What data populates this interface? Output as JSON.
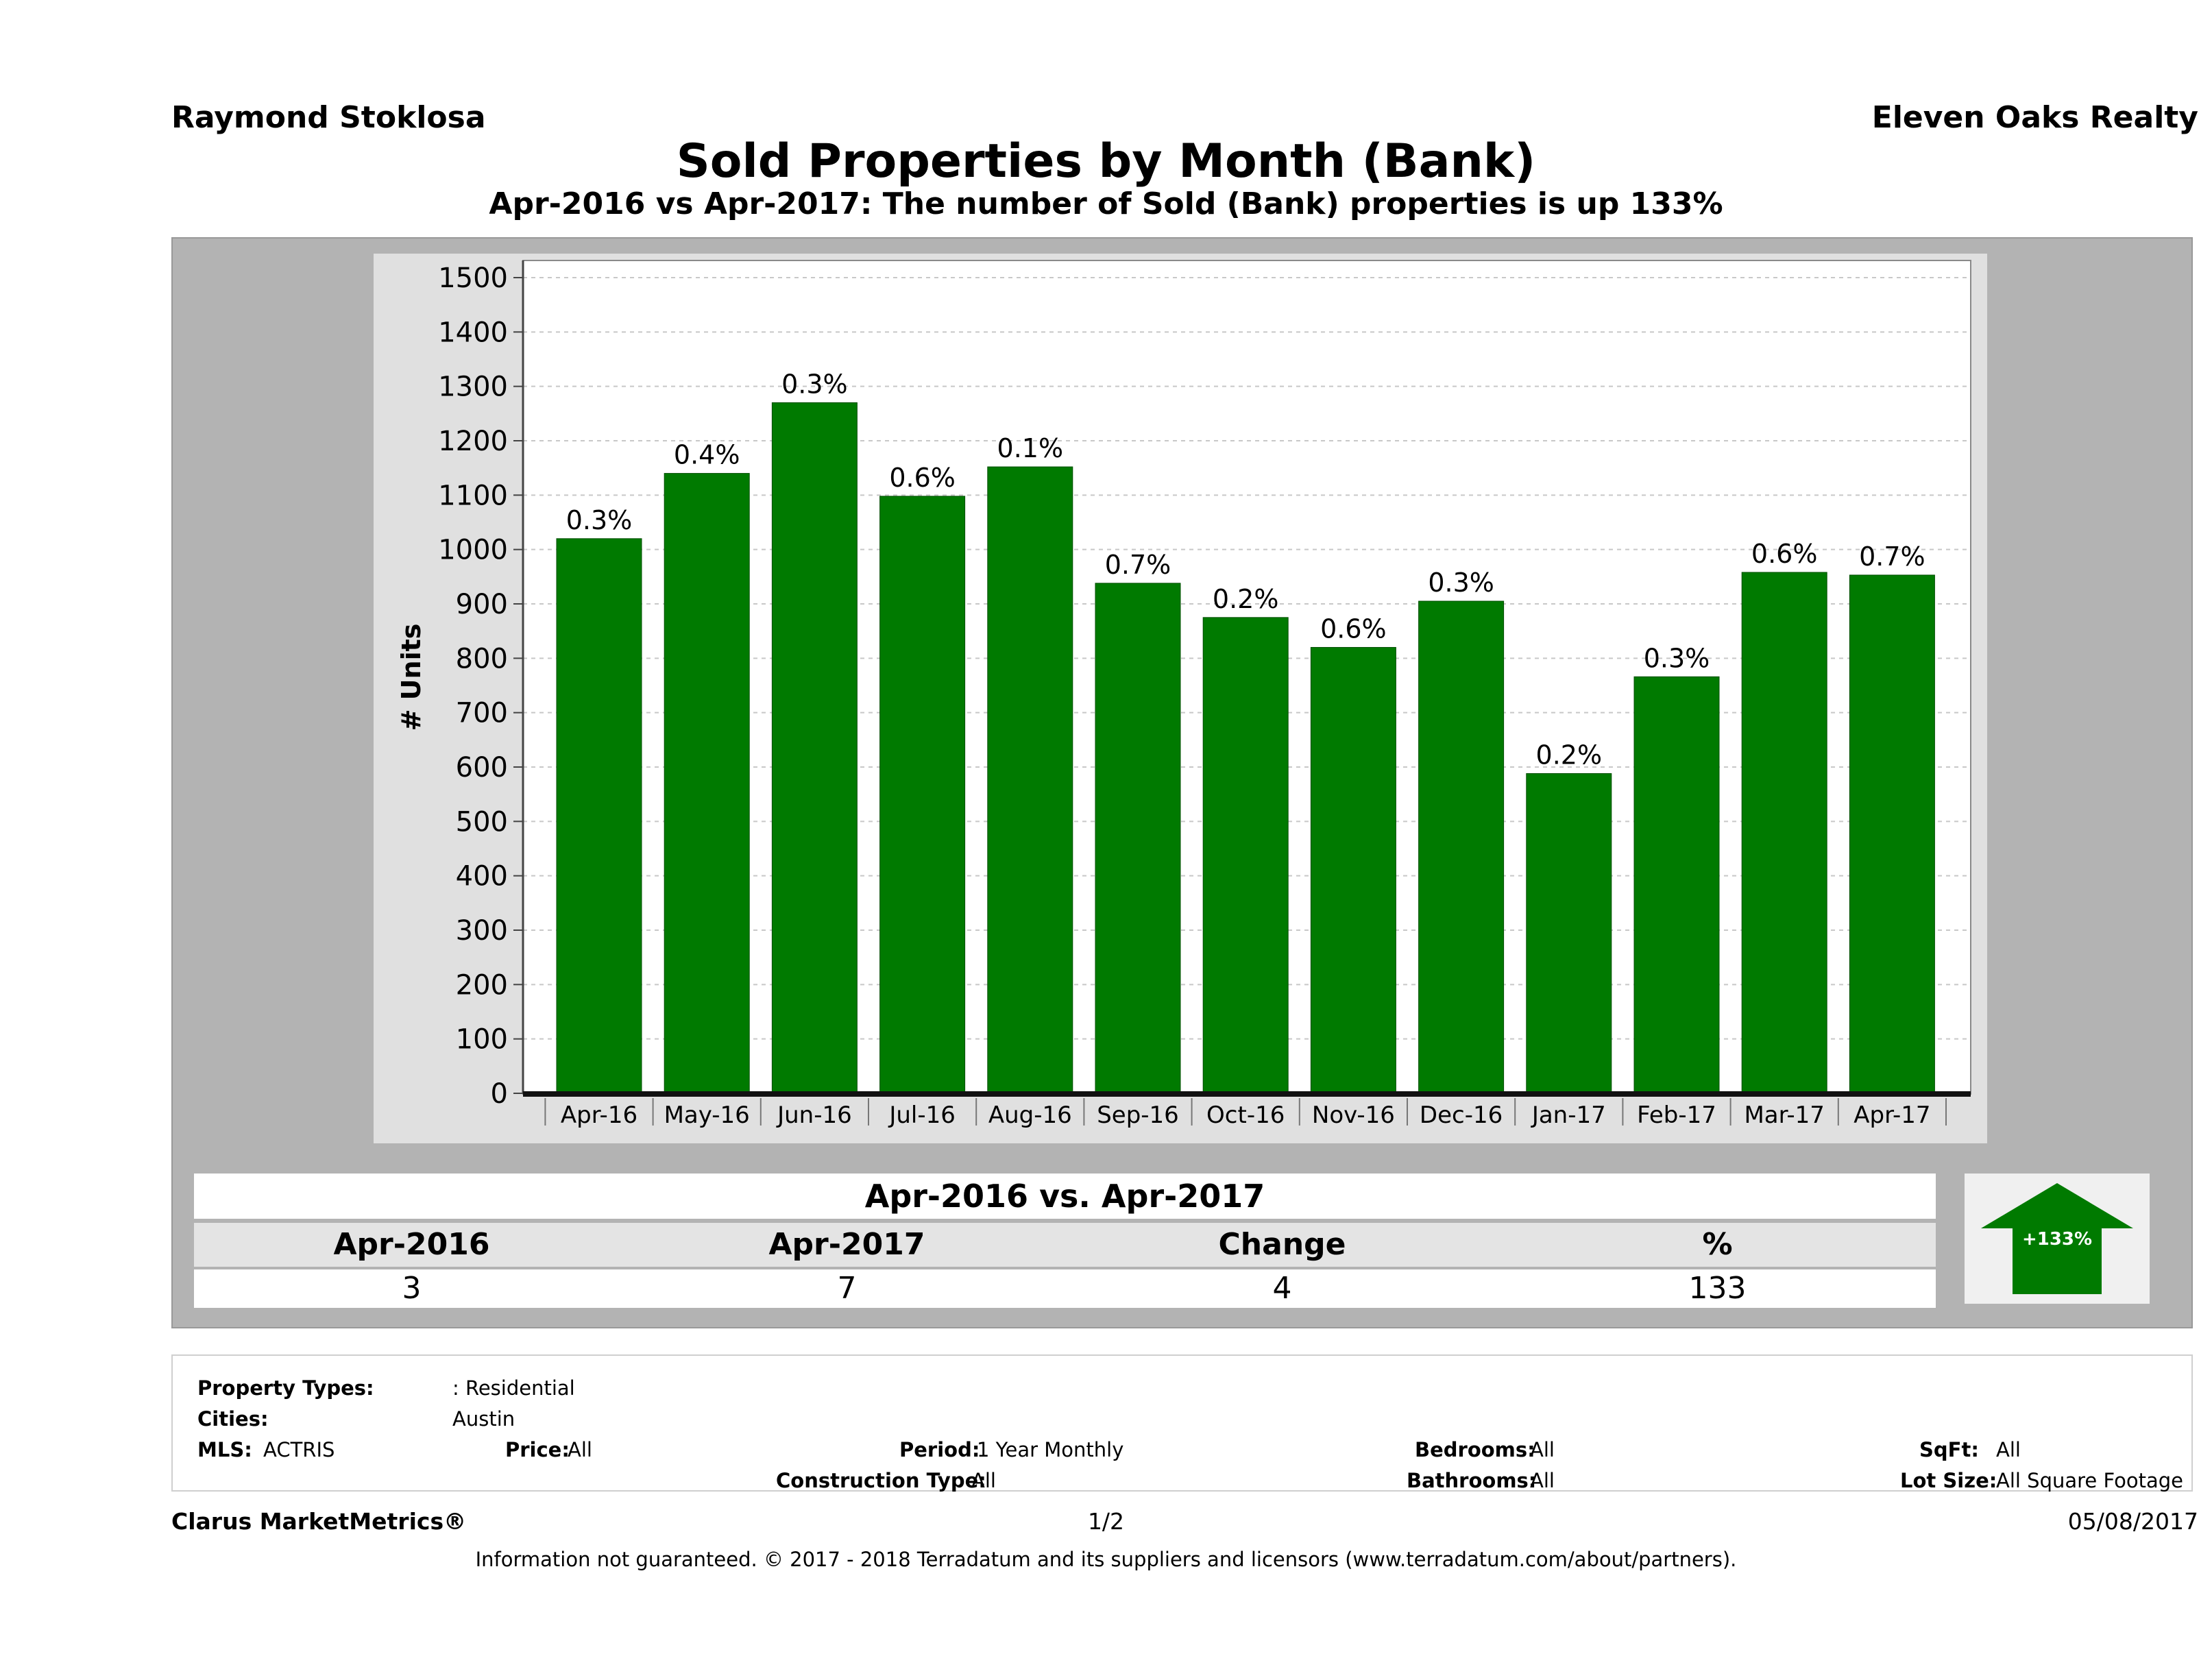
{
  "header": {
    "agent": "Raymond Stoklosa",
    "company": "Eleven Oaks Realty",
    "title": "Sold Properties by Month (Bank)",
    "subtitle": "Apr-2016 vs Apr-2017: The number of Sold (Bank)  properties is up 133%"
  },
  "chart_data": {
    "type": "bar",
    "title": "",
    "xlabel": "",
    "ylabel": "# Units",
    "ylim": [
      0,
      1500
    ],
    "yticks": [
      0,
      100,
      200,
      300,
      400,
      500,
      600,
      700,
      800,
      900,
      1000,
      1100,
      1200,
      1300,
      1400,
      1500
    ],
    "grid": true,
    "bar_color": "#007a00",
    "categories": [
      "Apr-16",
      "May-16",
      "Jun-16",
      "Jul-16",
      "Aug-16",
      "Sep-16",
      "Oct-16",
      "Nov-16",
      "Dec-16",
      "Jan-17",
      "Feb-17",
      "Mar-17",
      "Apr-17"
    ],
    "values": [
      1020,
      1140,
      1270,
      1098,
      1152,
      938,
      875,
      820,
      905,
      588,
      766,
      958,
      953
    ],
    "data_labels": [
      "0.3%",
      "0.4%",
      "0.3%",
      "0.6%",
      "0.1%",
      "0.7%",
      "0.2%",
      "0.6%",
      "0.3%",
      "0.2%",
      "0.3%",
      "0.6%",
      "0.7%"
    ]
  },
  "comparison": {
    "heading": "Apr-2016 vs. Apr-2017",
    "headers": [
      "Apr-2016",
      "Apr-2017",
      "Change",
      "%"
    ],
    "values": [
      "3",
      "7",
      "4",
      "133"
    ],
    "badge": "+133%",
    "badge_color": "#007a00"
  },
  "criteria": {
    "property_types_label": "Property Types:",
    "property_types_value": ": Residential",
    "cities_label": "Cities:",
    "cities_value": "Austin",
    "mls_label": "MLS:",
    "mls_value": "ACTRIS",
    "price_label": "Price:",
    "price_value": "All",
    "period_label": "Period:",
    "period_value": "1 Year Monthly",
    "construction_label": "Construction Type:",
    "construction_value": "All",
    "bedrooms_label": "Bedrooms:",
    "bedrooms_value": "All",
    "bathrooms_label": "Bathrooms:",
    "bathrooms_value": "All",
    "sqft_label": "SqFt:",
    "sqft_value": "All",
    "lotsize_label": "Lot Size:",
    "lotsize_value": "All Square Footage"
  },
  "footer": {
    "brand": "Clarus MarketMetrics®",
    "page": "1/2",
    "date": "05/08/2017",
    "disclaimer": "Information not guaranteed. © 2017 - 2018 Terradatum and its suppliers and licensors (www.terradatum.com/about/partners)."
  }
}
